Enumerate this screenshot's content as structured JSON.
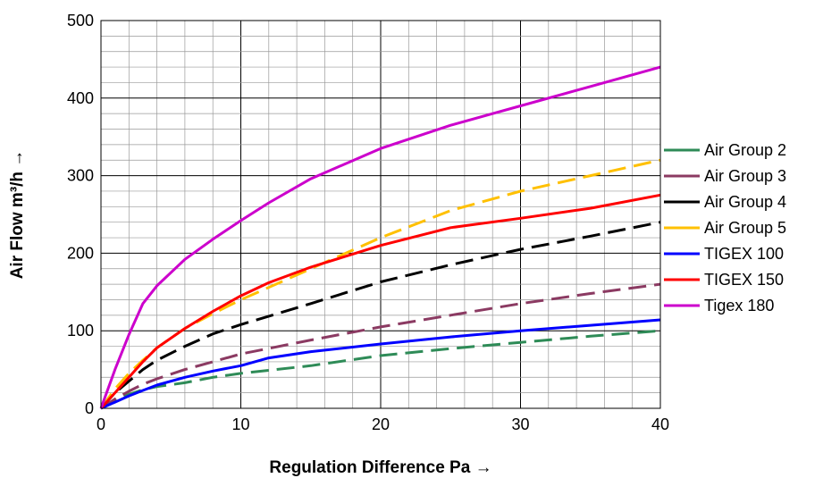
{
  "chart_data": {
    "type": "line",
    "title": "",
    "xlabel": "Regulation Difference Pa →",
    "ylabel": "Air Flow m³/h →",
    "xlim": [
      0,
      40
    ],
    "ylim": [
      0,
      500
    ],
    "x_ticks": [
      0,
      10,
      20,
      30,
      40
    ],
    "y_ticks": [
      0,
      100,
      200,
      300,
      400,
      500
    ],
    "grid": true,
    "legend_position": "right",
    "series": [
      {
        "name": "Air Group 2",
        "color": "#2E8B57",
        "dashed": true,
        "points": [
          [
            0,
            0
          ],
          [
            1,
            10
          ],
          [
            2,
            18
          ],
          [
            3,
            24
          ],
          [
            4,
            28
          ],
          [
            6,
            33
          ],
          [
            8,
            40
          ],
          [
            10,
            45
          ],
          [
            15,
            55
          ],
          [
            20,
            68
          ],
          [
            25,
            77
          ],
          [
            30,
            85
          ],
          [
            35,
            93
          ],
          [
            40,
            100
          ]
        ]
      },
      {
        "name": "Air Group 3",
        "color": "#8B3A62",
        "dashed": true,
        "points": [
          [
            0,
            0
          ],
          [
            1,
            12
          ],
          [
            2,
            22
          ],
          [
            3,
            31
          ],
          [
            4,
            38
          ],
          [
            6,
            50
          ],
          [
            8,
            60
          ],
          [
            10,
            70
          ],
          [
            15,
            88
          ],
          [
            20,
            105
          ],
          [
            25,
            120
          ],
          [
            30,
            135
          ],
          [
            35,
            148
          ],
          [
            40,
            160
          ]
        ]
      },
      {
        "name": "Air Group 4",
        "color": "#000000",
        "dashed": true,
        "points": [
          [
            0,
            0
          ],
          [
            1,
            20
          ],
          [
            2,
            35
          ],
          [
            3,
            50
          ],
          [
            4,
            62
          ],
          [
            6,
            80
          ],
          [
            8,
            96
          ],
          [
            10,
            108
          ],
          [
            15,
            135
          ],
          [
            20,
            163
          ],
          [
            25,
            185
          ],
          [
            30,
            205
          ],
          [
            35,
            222
          ],
          [
            40,
            240
          ]
        ]
      },
      {
        "name": "Air Group 5",
        "color": "#FFC000",
        "dashed": true,
        "points": [
          [
            0,
            0
          ],
          [
            1,
            25
          ],
          [
            2,
            45
          ],
          [
            3,
            62
          ],
          [
            4,
            78
          ],
          [
            6,
            103
          ],
          [
            8,
            122
          ],
          [
            10,
            140
          ],
          [
            15,
            180
          ],
          [
            20,
            220
          ],
          [
            25,
            255
          ],
          [
            30,
            280
          ],
          [
            35,
            300
          ],
          [
            40,
            320
          ]
        ]
      },
      {
        "name": "TIGEX 100",
        "color": "#0000FF",
        "dashed": false,
        "points": [
          [
            0,
            0
          ],
          [
            1,
            8
          ],
          [
            2,
            16
          ],
          [
            3,
            23
          ],
          [
            4,
            30
          ],
          [
            6,
            40
          ],
          [
            8,
            48
          ],
          [
            10,
            55
          ],
          [
            12,
            65
          ],
          [
            15,
            73
          ],
          [
            20,
            83
          ],
          [
            25,
            92
          ],
          [
            30,
            100
          ],
          [
            35,
            107
          ],
          [
            40,
            114
          ]
        ]
      },
      {
        "name": "TIGEX 150",
        "color": "#FF0000",
        "dashed": false,
        "points": [
          [
            0,
            0
          ],
          [
            1,
            20
          ],
          [
            2,
            40
          ],
          [
            3,
            60
          ],
          [
            4,
            78
          ],
          [
            6,
            103
          ],
          [
            8,
            125
          ],
          [
            10,
            145
          ],
          [
            12,
            162
          ],
          [
            15,
            182
          ],
          [
            20,
            210
          ],
          [
            25,
            233
          ],
          [
            30,
            245
          ],
          [
            35,
            258
          ],
          [
            40,
            275
          ]
        ]
      },
      {
        "name": "Tigex 180",
        "color": "#CC00CC",
        "dashed": false,
        "points": [
          [
            0,
            0
          ],
          [
            1,
            50
          ],
          [
            2,
            95
          ],
          [
            3,
            135
          ],
          [
            4,
            158
          ],
          [
            6,
            192
          ],
          [
            8,
            218
          ],
          [
            10,
            242
          ],
          [
            12,
            265
          ],
          [
            15,
            296
          ],
          [
            20,
            335
          ],
          [
            25,
            365
          ],
          [
            30,
            390
          ],
          [
            35,
            415
          ],
          [
            40,
            440
          ]
        ]
      }
    ]
  }
}
